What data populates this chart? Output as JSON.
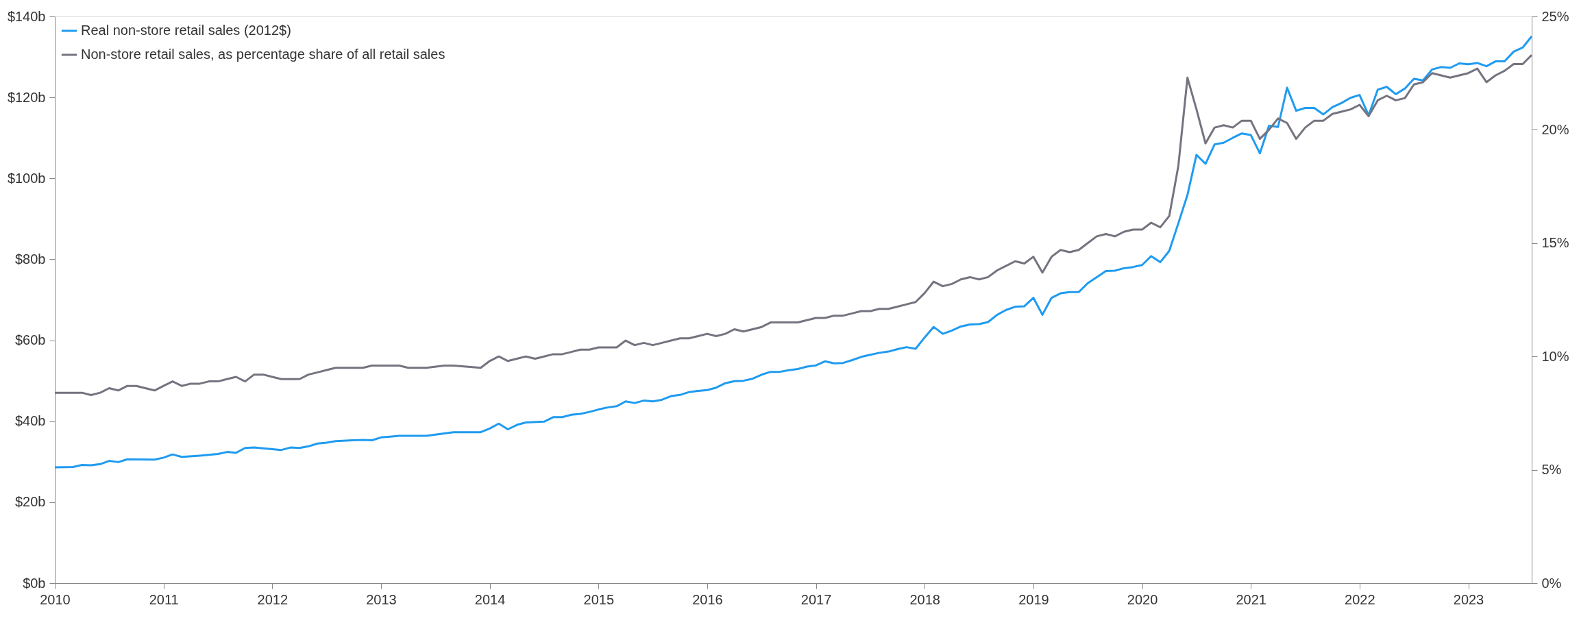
{
  "chart_data": {
    "type": "line",
    "xlim": [
      2010,
      2023.583
    ],
    "xticks": [
      2010,
      2011,
      2012,
      2013,
      2014,
      2015,
      2016,
      2017,
      2018,
      2019,
      2020,
      2021,
      2022,
      2023
    ],
    "ylim": [
      0,
      140
    ],
    "yticks": [
      {
        "value": 0,
        "label": "$0b"
      },
      {
        "value": 20,
        "label": "$20b"
      },
      {
        "value": 40,
        "label": "$40b"
      },
      {
        "value": 60,
        "label": "$60b"
      },
      {
        "value": 80,
        "label": "$80b"
      },
      {
        "value": 100,
        "label": "$100b"
      },
      {
        "value": 120,
        "label": "$120b"
      },
      {
        "value": 140,
        "label": "$140b"
      }
    ],
    "y2lim": [
      0,
      25
    ],
    "y2ticks": [
      {
        "value": 0,
        "label": "0%"
      },
      {
        "value": 5,
        "label": "5%"
      },
      {
        "value": 10,
        "label": "10%"
      },
      {
        "value": 15,
        "label": "15%"
      },
      {
        "value": 20,
        "label": "20%"
      },
      {
        "value": 25,
        "label": "25%"
      }
    ],
    "grid": false,
    "legend": "top left",
    "marker": "none",
    "line_style": "solid",
    "series": [
      {
        "name": "Real non-store retail sales (2012$)",
        "color": "#1f9bf0",
        "axis": "y",
        "x": [
          2010,
          2010.167,
          2010.25,
          2010.333,
          2010.417,
          2010.5,
          2010.583,
          2010.667,
          2010.917,
          2011,
          2011.083,
          2011.167,
          2011.333,
          2011.5,
          2011.583,
          2011.667,
          2011.75,
          2011.833,
          2012.083,
          2012.167,
          2012.25,
          2012.333,
          2012.417,
          2012.5,
          2012.583,
          2012.833,
          2012.917,
          2013,
          2013.083,
          2013.167,
          2013.417,
          2013.667,
          2013.917,
          2014,
          2014.083,
          2014.167,
          2014.25,
          2014.333,
          2014.5,
          2014.583,
          2014.667,
          2014.75,
          2014.833,
          2014.917,
          2015,
          2015.083,
          2015.167,
          2015.25,
          2015.333,
          2015.417,
          2015.5,
          2015.583,
          2015.667,
          2015.75,
          2015.833,
          2015.917,
          2016,
          2016.083,
          2016.167,
          2016.25,
          2016.333,
          2016.417,
          2016.5,
          2016.583,
          2016.667,
          2016.75,
          2016.833,
          2016.917,
          2017,
          2017.083,
          2017.167,
          2017.25,
          2017.333,
          2017.417,
          2017.5,
          2017.583,
          2017.667,
          2017.75,
          2017.833,
          2017.917,
          2018,
          2018.083,
          2018.167,
          2018.25,
          2018.333,
          2018.417,
          2018.5,
          2018.583,
          2018.667,
          2018.75,
          2018.833,
          2018.917,
          2019,
          2019.083,
          2019.167,
          2019.25,
          2019.333,
          2019.417,
          2019.5,
          2019.583,
          2019.667,
          2019.75,
          2019.833,
          2019.917,
          2020,
          2020.083,
          2020.167,
          2020.25,
          2020.333,
          2020.417,
          2020.5,
          2020.583,
          2020.667,
          2020.75,
          2020.833,
          2020.917,
          2021,
          2021.083,
          2021.167,
          2021.25,
          2021.333,
          2021.417,
          2021.5,
          2021.583,
          2021.667,
          2021.75,
          2021.833,
          2021.917,
          2022,
          2022.083,
          2022.167,
          2022.25,
          2022.333,
          2022.417,
          2022.5,
          2022.583,
          2022.667,
          2022.75,
          2022.833,
          2022.917,
          2023,
          2023.083,
          2023.167,
          2023.25,
          2023.333,
          2023.417,
          2023.5,
          2023.583
        ],
        "values": [
          28.6,
          28.7,
          29.2,
          29.1,
          29.4,
          30.2,
          29.9,
          30.6,
          30.5,
          31.0,
          31.8,
          31.2,
          31.5,
          31.9,
          32.4,
          32.2,
          33.4,
          33.5,
          32.9,
          33.5,
          33.4,
          33.8,
          34.5,
          34.7,
          35.1,
          35.4,
          35.3,
          36.0,
          36.2,
          36.4,
          36.4,
          37.3,
          37.3,
          38.2,
          39.4,
          38.0,
          39.1,
          39.7,
          39.9,
          41.0,
          41.0,
          41.6,
          41.8,
          42.3,
          42.9,
          43.4,
          43.7,
          44.9,
          44.5,
          45.1,
          44.9,
          45.3,
          46.2,
          46.5,
          47.2,
          47.5,
          47.7,
          48.3,
          49.4,
          49.9,
          50.0,
          50.5,
          51.5,
          52.2,
          52.2,
          52.6,
          52.9,
          53.5,
          53.8,
          54.8,
          54.3,
          54.4,
          55.1,
          55.9,
          56.4,
          56.9,
          57.2,
          57.8,
          58.3,
          57.9,
          60.7,
          63.3,
          61.6,
          62.4,
          63.4,
          63.9,
          64.0,
          64.5,
          66.3,
          67.5,
          68.3,
          68.4,
          70.5,
          66.3,
          70.5,
          71.6,
          71.9,
          71.9,
          74.1,
          75.6,
          77.1,
          77.2,
          77.8,
          78.1,
          78.6,
          80.8,
          79.3,
          82.1,
          88.9,
          95.9,
          105.8,
          103.6,
          108.4,
          108.8,
          110.0,
          111.1,
          110.7,
          106.2,
          113.0,
          112.7,
          122.4,
          116.7,
          117.4,
          117.4,
          115.8,
          117.6,
          118.6,
          119.9,
          120.6,
          115.6,
          121.9,
          122.6,
          120.8,
          122.2,
          124.6,
          124.2,
          126.9,
          127.5,
          127.3,
          128.4,
          128.2,
          128.5,
          127.7,
          128.9,
          128.9,
          131.3,
          132.3,
          135.1
        ]
      },
      {
        "name": "Non-store retail sales, as percentage share of all retail sales",
        "color": "#75737f",
        "axis": "y2",
        "x": [
          2010,
          2010.167,
          2010.25,
          2010.333,
          2010.417,
          2010.5,
          2010.583,
          2010.667,
          2010.75,
          2010.833,
          2010.917,
          2011,
          2011.083,
          2011.167,
          2011.25,
          2011.333,
          2011.417,
          2011.5,
          2011.583,
          2011.667,
          2011.75,
          2011.833,
          2011.917,
          2012,
          2012.083,
          2012.167,
          2012.25,
          2012.333,
          2012.417,
          2012.5,
          2012.583,
          2012.667,
          2012.75,
          2012.833,
          2012.917,
          2013,
          2013.083,
          2013.167,
          2013.25,
          2013.333,
          2013.417,
          2013.583,
          2013.667,
          2013.917,
          2014,
          2014.083,
          2014.167,
          2014.25,
          2014.333,
          2014.417,
          2014.5,
          2014.583,
          2014.667,
          2014.75,
          2014.833,
          2014.917,
          2015,
          2015.083,
          2015.167,
          2015.25,
          2015.333,
          2015.417,
          2015.5,
          2015.583,
          2015.667,
          2015.75,
          2015.833,
          2015.917,
          2016,
          2016.083,
          2016.167,
          2016.25,
          2016.333,
          2016.417,
          2016.5,
          2016.583,
          2016.667,
          2016.75,
          2016.833,
          2016.917,
          2017,
          2017.083,
          2017.167,
          2017.25,
          2017.333,
          2017.417,
          2017.5,
          2017.583,
          2017.667,
          2017.75,
          2017.833,
          2017.917,
          2018,
          2018.083,
          2018.167,
          2018.25,
          2018.333,
          2018.417,
          2018.5,
          2018.583,
          2018.667,
          2018.75,
          2018.833,
          2018.917,
          2019,
          2019.083,
          2019.167,
          2019.25,
          2019.333,
          2019.417,
          2019.5,
          2019.583,
          2019.667,
          2019.75,
          2019.833,
          2019.917,
          2020,
          2020.083,
          2020.167,
          2020.25,
          2020.333,
          2020.417,
          2020.5,
          2020.583,
          2020.667,
          2020.75,
          2020.833,
          2020.917,
          2021,
          2021.083,
          2021.167,
          2021.25,
          2021.333,
          2021.417,
          2021.5,
          2021.583,
          2021.667,
          2021.75,
          2021.833,
          2021.917,
          2022,
          2022.083,
          2022.167,
          2022.25,
          2022.333,
          2022.417,
          2022.5,
          2022.583,
          2022.667,
          2022.75,
          2022.833,
          2022.917,
          2023,
          2023.083,
          2023.167,
          2023.25,
          2023.333,
          2023.417,
          2023.5,
          2023.583
        ],
        "values": [
          8.4,
          8.4,
          8.4,
          8.3,
          8.4,
          8.6,
          8.5,
          8.7,
          8.7,
          8.6,
          8.5,
          8.7,
          8.9,
          8.7,
          8.8,
          8.8,
          8.9,
          8.9,
          9.0,
          9.1,
          8.9,
          9.2,
          9.2,
          9.1,
          9.0,
          9.0,
          9.0,
          9.2,
          9.3,
          9.4,
          9.5,
          9.5,
          9.5,
          9.5,
          9.6,
          9.6,
          9.6,
          9.6,
          9.5,
          9.5,
          9.5,
          9.6,
          9.6,
          9.5,
          9.8,
          10.0,
          9.8,
          9.9,
          10.0,
          9.9,
          10.0,
          10.1,
          10.1,
          10.2,
          10.3,
          10.3,
          10.4,
          10.4,
          10.4,
          10.7,
          10.5,
          10.6,
          10.5,
          10.6,
          10.7,
          10.8,
          10.8,
          10.9,
          11.0,
          10.9,
          11.0,
          11.2,
          11.1,
          11.2,
          11.3,
          11.5,
          11.5,
          11.5,
          11.5,
          11.6,
          11.7,
          11.7,
          11.8,
          11.8,
          11.9,
          12.0,
          12.0,
          12.1,
          12.1,
          12.2,
          12.3,
          12.4,
          12.8,
          13.3,
          13.1,
          13.2,
          13.4,
          13.5,
          13.4,
          13.5,
          13.8,
          14.0,
          14.2,
          14.1,
          14.4,
          13.7,
          14.4,
          14.7,
          14.6,
          14.7,
          15.0,
          15.3,
          15.4,
          15.3,
          15.5,
          15.6,
          15.6,
          15.9,
          15.7,
          16.2,
          18.4,
          22.3,
          20.9,
          19.4,
          20.1,
          20.2,
          20.1,
          20.4,
          20.4,
          19.6,
          20.0,
          20.5,
          20.3,
          19.6,
          20.1,
          20.4,
          20.4,
          20.7,
          20.8,
          20.9,
          21.1,
          20.6,
          21.3,
          21.5,
          21.3,
          21.4,
          22.0,
          22.1,
          22.5,
          22.4,
          22.3,
          22.4,
          22.5,
          22.7,
          22.1,
          22.4,
          22.6,
          22.9,
          22.9,
          23.3
        ]
      }
    ]
  }
}
